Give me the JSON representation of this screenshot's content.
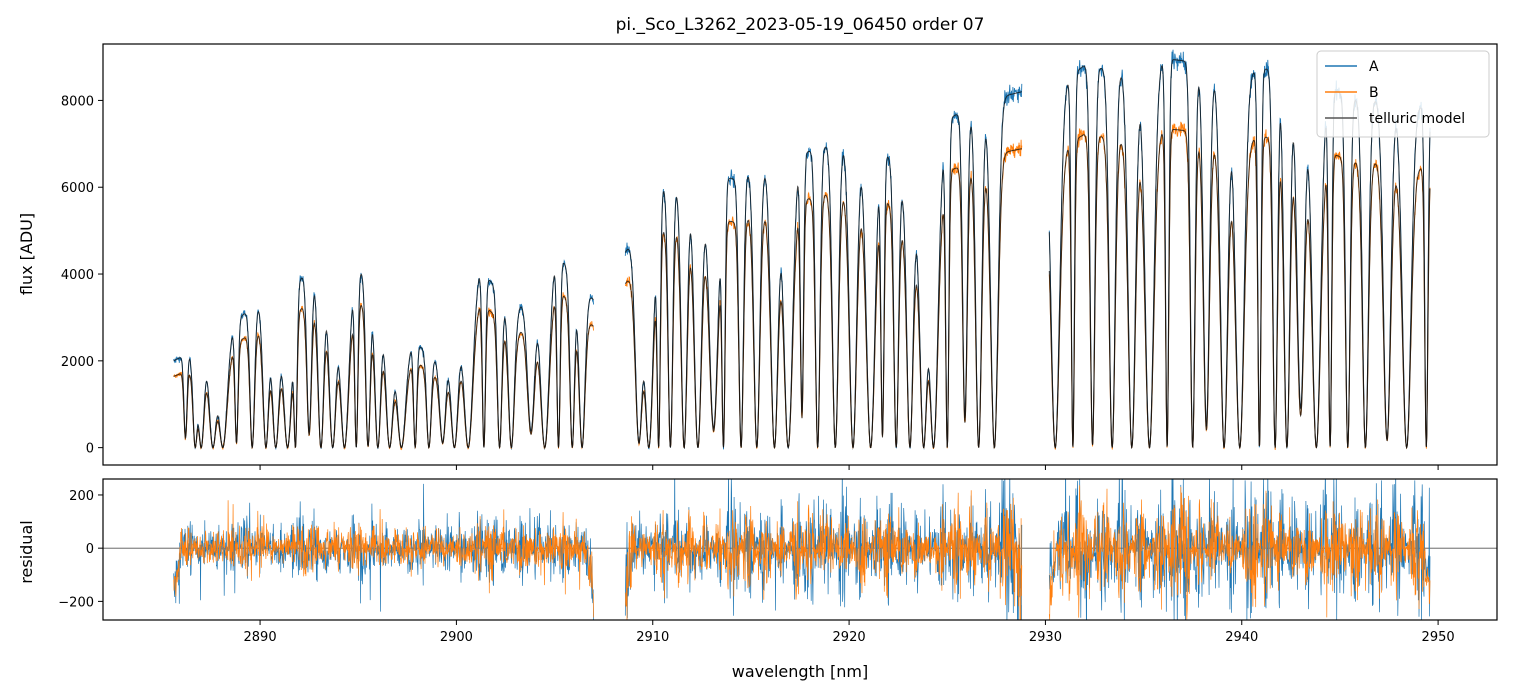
{
  "chart_data": [
    {
      "type": "line",
      "panel": "top",
      "title": "pi._Sco_L3262_2023-05-19_06450  order 07",
      "xlabel": "",
      "ylabel": "flux [ADU]",
      "xlim": [
        2882,
        2953
      ],
      "ylim": [
        -400,
        9300
      ],
      "yticks": [
        0,
        2000,
        4000,
        6000,
        8000
      ],
      "ytick_labels": [
        "0",
        "2000",
        "4000",
        "6000",
        "8000"
      ],
      "xticks": [
        2890,
        2900,
        2910,
        2920,
        2930,
        2940,
        2950
      ],
      "legend": {
        "placement": "top-right",
        "entries": [
          "A",
          "B",
          "telluric model"
        ]
      },
      "segments": [
        {
          "x": [
            2885.6,
            2907.0
          ],
          "contA": [
            2000,
            2450,
            3200,
            3800,
            4200,
            4050,
            2600,
            2000,
            4100,
            3200,
            4500,
            3400
          ],
          "ratioB": 0.82
        },
        {
          "x": [
            2908.6,
            2928.8
          ],
          "contA": [
            4500,
            6000,
            6300,
            6200,
            6600,
            6800,
            7100,
            7200,
            5500,
            7600,
            8000,
            8200
          ],
          "ratioB": 0.84
        },
        {
          "x": [
            2930.2,
            2949.6
          ],
          "contA": [
            8200,
            8800,
            8700,
            9000,
            8900,
            8600,
            8700,
            8800,
            8300,
            8000,
            8100,
            7800
          ],
          "ratioB": 0.82
        }
      ],
      "absorption_lines_nm": [
        2886.2,
        2886.7,
        2887.0,
        2887.6,
        2888.1,
        2888.8,
        2889.6,
        2890.3,
        2890.8,
        2891.4,
        2891.8,
        2892.5,
        2893.1,
        2893.7,
        2894.3,
        2894.9,
        2895.5,
        2896.0,
        2896.6,
        2897.2,
        2897.9,
        2898.6,
        2899.3,
        2899.9,
        2900.6,
        2901.4,
        2902.2,
        2902.8,
        2903.8,
        2904.5,
        2905.2,
        2905.9,
        2906.4,
        2909.3,
        2909.8,
        2910.3,
        2910.9,
        2911.6,
        2912.3,
        2913.1,
        2913.6,
        2914.5,
        2915.3,
        2916.2,
        2916.9,
        2917.6,
        2918.4,
        2919.3,
        2920.2,
        2921.1,
        2921.7,
        2922.4,
        2923.1,
        2923.8,
        2924.3,
        2925.0,
        2925.9,
        2926.6,
        2927.4,
        2930.5,
        2931.4,
        2932.4,
        2933.4,
        2934.4,
        2935.3,
        2936.2,
        2937.5,
        2938.2,
        2939.1,
        2939.9,
        2940.9,
        2941.7,
        2942.3,
        2943.0,
        2943.8,
        2944.5,
        2945.4,
        2946.3,
        2947.4,
        2948.4,
        2949.4
      ],
      "series": [
        {
          "name": "A",
          "color": "#1f77b4"
        },
        {
          "name": "B",
          "color": "#ff7f0e"
        },
        {
          "name": "telluric model",
          "color": "#000000"
        }
      ]
    },
    {
      "type": "line",
      "panel": "bottom",
      "title": "",
      "xlabel": "wavelength [nm]",
      "ylabel": "residual",
      "xlim": [
        2882,
        2953
      ],
      "ylim": [
        -270,
        260
      ],
      "yticks": [
        -200,
        0,
        200
      ],
      "ytick_labels": [
        "−200",
        "0",
        "200"
      ],
      "xticks": [
        2890,
        2900,
        2910,
        2920,
        2930,
        2940,
        2950
      ],
      "xtick_labels": [
        "2890",
        "2900",
        "2910",
        "2920",
        "2930",
        "2940",
        "2950"
      ],
      "zero_line": true,
      "series": [
        {
          "name": "A",
          "color": "#1f77b4"
        },
        {
          "name": "B",
          "color": "#ff7f0e"
        }
      ]
    }
  ]
}
